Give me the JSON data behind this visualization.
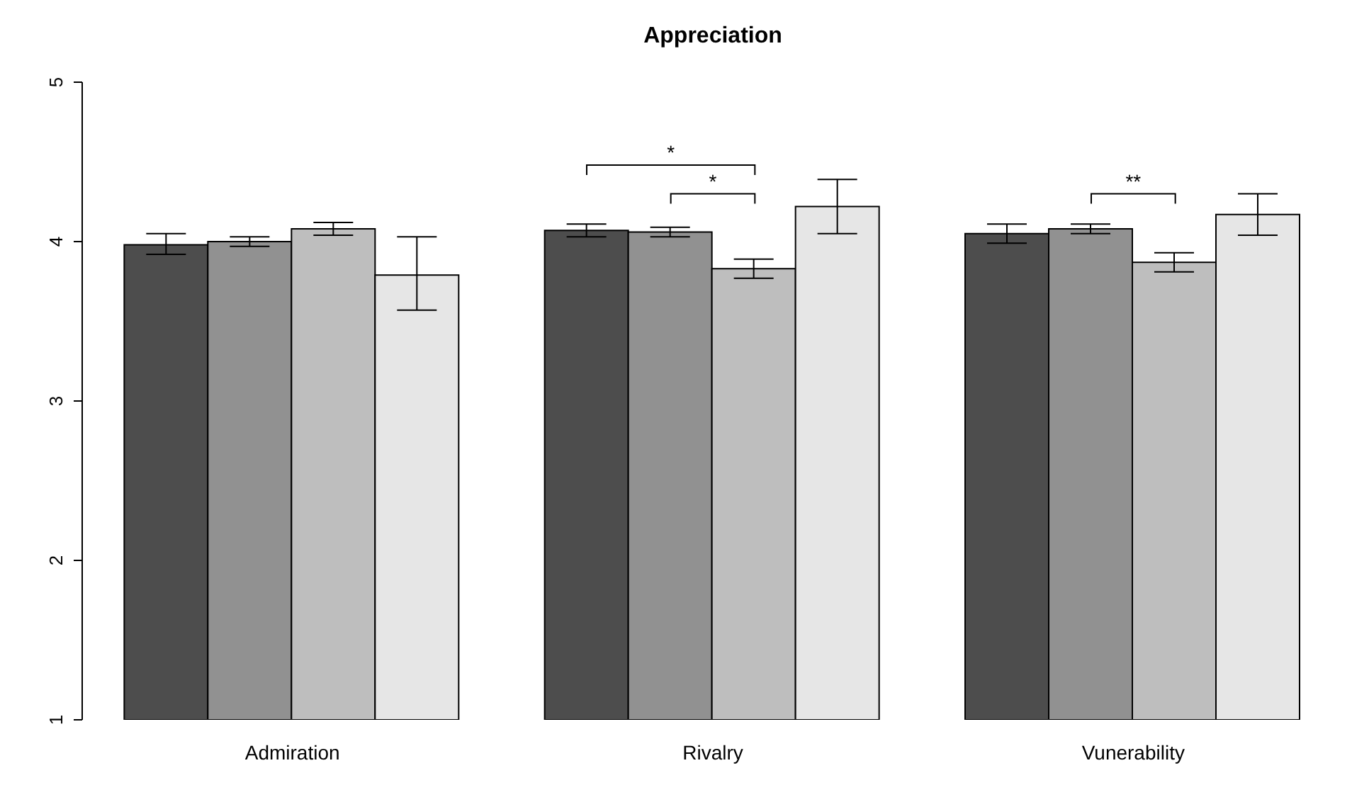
{
  "chart_data": {
    "type": "bar",
    "title": "Appreciation",
    "categories": [
      "Admiration",
      "Rivalry",
      "Vunerability"
    ],
    "series": [
      {
        "color": "#4d4d4d",
        "values": [
          3.98,
          4.07,
          4.05
        ],
        "errors": [
          [
            3.92,
            4.05
          ],
          [
            4.03,
            4.11
          ],
          [
            3.99,
            4.11
          ]
        ]
      },
      {
        "color": "#919191",
        "values": [
          4.0,
          4.06,
          4.08
        ],
        "errors": [
          [
            3.97,
            4.03
          ],
          [
            4.03,
            4.09
          ],
          [
            4.05,
            4.11
          ]
        ]
      },
      {
        "color": "#bebebe",
        "values": [
          4.08,
          3.83,
          3.87
        ],
        "errors": [
          [
            4.04,
            4.12
          ],
          [
            3.77,
            3.89
          ],
          [
            3.81,
            3.93
          ]
        ]
      },
      {
        "color": "#e6e6e6",
        "values": [
          3.79,
          4.22,
          4.17
        ],
        "errors": [
          [
            3.57,
            4.03
          ],
          [
            4.05,
            4.39
          ],
          [
            4.04,
            4.3
          ]
        ]
      }
    ],
    "ylim": [
      1,
      5
    ],
    "yticks": [
      1,
      2,
      3,
      4,
      5
    ],
    "grid": false,
    "legend": false,
    "annotations": [
      "*",
      "*",
      "**"
    ]
  }
}
